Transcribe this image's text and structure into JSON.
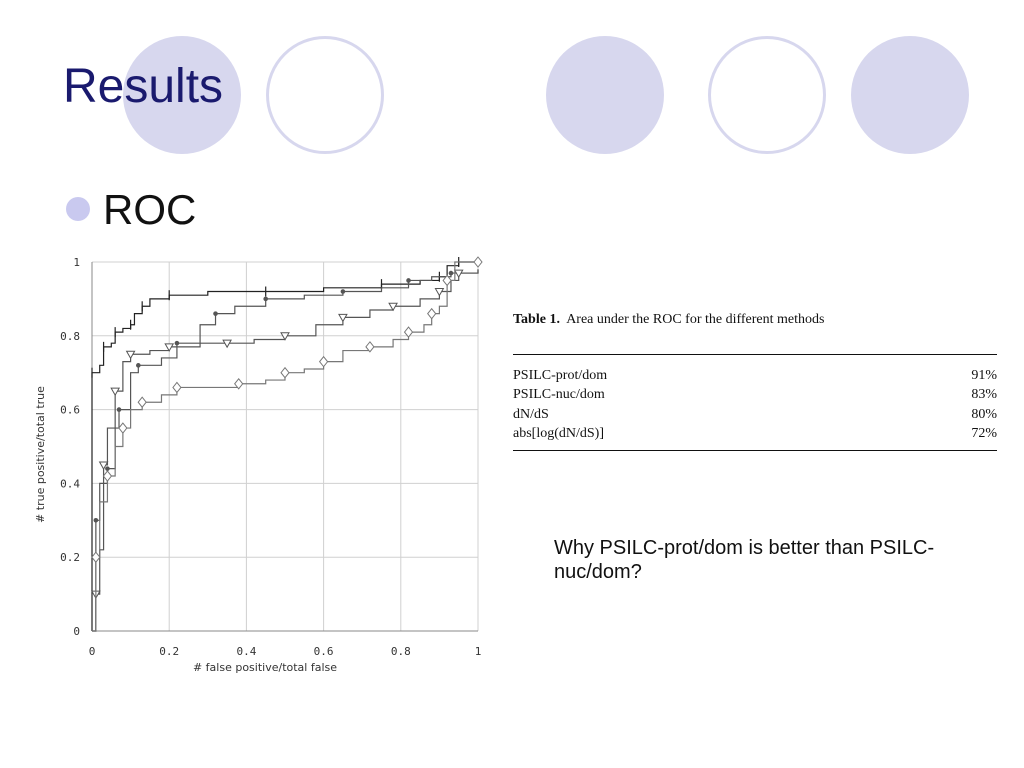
{
  "slide": {
    "title": "Results",
    "bullet": "ROC",
    "question": "Why PSILC-prot/dom is better than PSILC-nuc/dom?"
  },
  "colors": {
    "title": "#1a1a6e",
    "decor_circle": "#d7d7ee",
    "bullet_dot": "#c9c9ef"
  },
  "table": {
    "caption_label": "Table 1.",
    "caption_text": "Area under the ROC for the different methods",
    "rows": [
      {
        "method": "PSILC-prot/dom",
        "value": "91%"
      },
      {
        "method": "PSILC-nuc/dom",
        "value": "83%"
      },
      {
        "method": "dN/dS",
        "value": "80%"
      },
      {
        "method": "abs[log(dN/dS)]",
        "value": "72%"
      }
    ]
  },
  "chart_data": {
    "type": "line",
    "title": "",
    "xlabel": "# false positive/total false",
    "ylabel": "# true  positive/total true",
    "xlim": [
      0,
      1
    ],
    "ylim": [
      0,
      1
    ],
    "xticks": [
      "0",
      "0.2",
      "0.4",
      "0.6",
      "0.8",
      "1"
    ],
    "yticks": [
      "0",
      "0.2",
      "0.4",
      "0.6",
      "0.8",
      "1"
    ],
    "grid": true,
    "series": [
      {
        "marker": "plus",
        "color": "#222222",
        "points": [
          [
            0,
            0
          ],
          [
            0,
            0.7
          ],
          [
            0.02,
            0.72
          ],
          [
            0.03,
            0.77
          ],
          [
            0.05,
            0.78
          ],
          [
            0.06,
            0.81
          ],
          [
            0.08,
            0.82
          ],
          [
            0.1,
            0.83
          ],
          [
            0.11,
            0.86
          ],
          [
            0.13,
            0.88
          ],
          [
            0.15,
            0.9
          ],
          [
            0.2,
            0.91
          ],
          [
            0.3,
            0.92
          ],
          [
            0.45,
            0.92
          ],
          [
            0.6,
            0.93
          ],
          [
            0.75,
            0.94
          ],
          [
            0.85,
            0.95
          ],
          [
            0.9,
            0.96
          ],
          [
            0.92,
            0.99
          ],
          [
            0.95,
            1.0
          ],
          [
            1,
            1.0
          ]
        ]
      },
      {
        "marker": "dot",
        "color": "#555555",
        "points": [
          [
            0,
            0
          ],
          [
            0.01,
            0.3
          ],
          [
            0.02,
            0.4
          ],
          [
            0.04,
            0.44
          ],
          [
            0.06,
            0.55
          ],
          [
            0.07,
            0.6
          ],
          [
            0.1,
            0.7
          ],
          [
            0.12,
            0.72
          ],
          [
            0.18,
            0.74
          ],
          [
            0.22,
            0.78
          ],
          [
            0.28,
            0.83
          ],
          [
            0.32,
            0.86
          ],
          [
            0.37,
            0.88
          ],
          [
            0.45,
            0.9
          ],
          [
            0.55,
            0.91
          ],
          [
            0.65,
            0.92
          ],
          [
            0.75,
            0.93
          ],
          [
            0.82,
            0.95
          ],
          [
            0.88,
            0.96
          ],
          [
            0.93,
            0.97
          ],
          [
            1,
            0.98
          ]
        ]
      },
      {
        "marker": "triangle-down",
        "color": "#555555",
        "points": [
          [
            0,
            0
          ],
          [
            0.01,
            0.1
          ],
          [
            0.02,
            0.22
          ],
          [
            0.03,
            0.45
          ],
          [
            0.04,
            0.55
          ],
          [
            0.06,
            0.65
          ],
          [
            0.08,
            0.73
          ],
          [
            0.1,
            0.75
          ],
          [
            0.15,
            0.76
          ],
          [
            0.2,
            0.77
          ],
          [
            0.28,
            0.78
          ],
          [
            0.35,
            0.78
          ],
          [
            0.42,
            0.79
          ],
          [
            0.5,
            0.8
          ],
          [
            0.58,
            0.83
          ],
          [
            0.65,
            0.85
          ],
          [
            0.72,
            0.87
          ],
          [
            0.78,
            0.88
          ],
          [
            0.85,
            0.9
          ],
          [
            0.9,
            0.92
          ],
          [
            0.93,
            0.95
          ],
          [
            0.95,
            0.97
          ],
          [
            1,
            0.98
          ]
        ]
      },
      {
        "marker": "diamond",
        "color": "#777777",
        "points": [
          [
            0,
            0
          ],
          [
            0.01,
            0.2
          ],
          [
            0.02,
            0.35
          ],
          [
            0.04,
            0.42
          ],
          [
            0.06,
            0.5
          ],
          [
            0.08,
            0.55
          ],
          [
            0.1,
            0.6
          ],
          [
            0.13,
            0.62
          ],
          [
            0.18,
            0.64
          ],
          [
            0.22,
            0.66
          ],
          [
            0.3,
            0.66
          ],
          [
            0.38,
            0.67
          ],
          [
            0.45,
            0.68
          ],
          [
            0.5,
            0.7
          ],
          [
            0.55,
            0.71
          ],
          [
            0.6,
            0.73
          ],
          [
            0.65,
            0.76
          ],
          [
            0.72,
            0.77
          ],
          [
            0.78,
            0.79
          ],
          [
            0.82,
            0.81
          ],
          [
            0.86,
            0.83
          ],
          [
            0.88,
            0.86
          ],
          [
            0.9,
            0.88
          ],
          [
            0.92,
            0.95
          ],
          [
            0.94,
            1.0
          ],
          [
            1,
            1.0
          ]
        ]
      }
    ]
  }
}
